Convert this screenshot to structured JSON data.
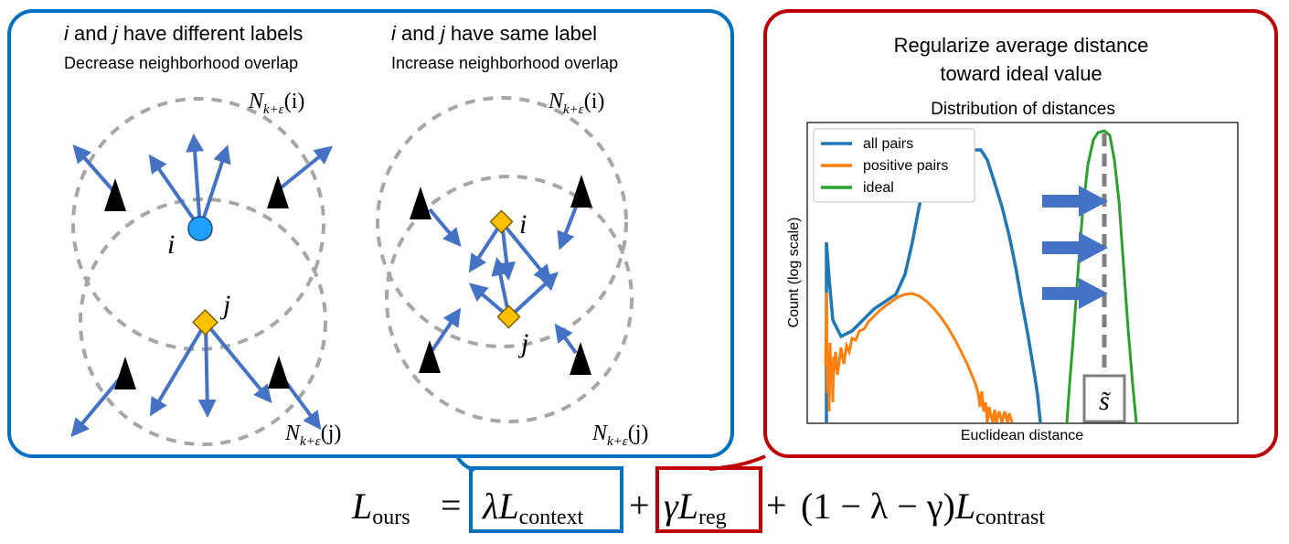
{
  "left_panel": {
    "different": {
      "title_i": "i",
      "title_and": " and ",
      "title_j": "j",
      "title_rest": " have different labels",
      "subtitle": "Decrease neighborhood overlap",
      "label_i": "i",
      "label_j": "j",
      "n_top": {
        "N": "N",
        "sub": "k+ε",
        "arg": "(i)"
      },
      "n_bottom": {
        "N": "N",
        "sub": "k+ε",
        "arg": "(j)"
      }
    },
    "same": {
      "title_i": "i",
      "title_and": " and ",
      "title_j": "j",
      "title_rest": " have same label",
      "subtitle": "Increase neighborhood overlap",
      "label_i": "i",
      "label_j": "j",
      "n_top": {
        "N": "N",
        "sub": "k+ε",
        "arg": "(i)"
      },
      "n_bottom": {
        "N": "N",
        "sub": "k+ε",
        "arg": "(j)"
      }
    }
  },
  "right_panel": {
    "title_line1": "Regularize average distance",
    "title_line2": "toward ideal value",
    "chart_title": "Distribution of distances",
    "xlabel": "Euclidean distance",
    "ylabel": "Count (log scale)",
    "s_label": "s̃",
    "legend": [
      {
        "label": "all pairs",
        "color": "#1f77b4"
      },
      {
        "label": "positive pairs",
        "color": "#ff7f0e"
      },
      {
        "label": "ideal",
        "color": "#2ca02c"
      }
    ]
  },
  "equation": {
    "lhs_L": "L",
    "lhs_sub": "ours",
    "eq": "=",
    "lambda": "λ",
    "context_L": "L",
    "context_sub": "context",
    "plus1": "+",
    "gamma": "γ",
    "reg_L": "L",
    "reg_sub": "reg",
    "plus2": "+",
    "coef": "(1 − λ − γ)",
    "contrast_L": "L",
    "contrast_sub": "contrast"
  },
  "colors": {
    "blue_frame": "#0070c0",
    "red_frame": "#c00000",
    "arrow": "#4472c4",
    "node_i": "#1ea0ff",
    "node_j": "#ffc000",
    "triangle": "#000000",
    "dashed": "#a6a6a6"
  }
}
